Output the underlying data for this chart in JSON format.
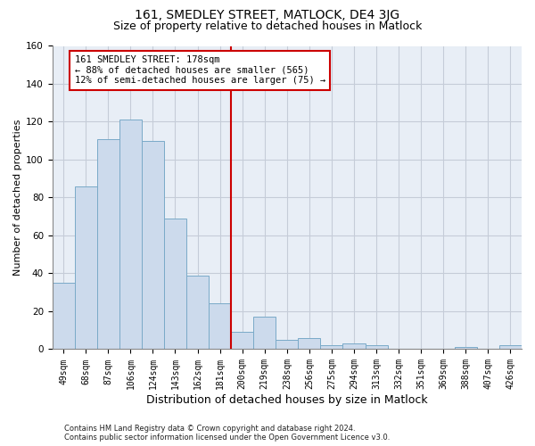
{
  "title": "161, SMEDLEY STREET, MATLOCK, DE4 3JG",
  "subtitle": "Size of property relative to detached houses in Matlock",
  "xlabel": "Distribution of detached houses by size in Matlock",
  "ylabel": "Number of detached properties",
  "bar_color": "#ccdaec",
  "bar_edge_color": "#7aaac8",
  "background_color": "#ffffff",
  "plot_bg_color": "#e8eef6",
  "grid_color": "#c5ccd8",
  "categories": [
    "49sqm",
    "68sqm",
    "87sqm",
    "106sqm",
    "124sqm",
    "143sqm",
    "162sqm",
    "181sqm",
    "200sqm",
    "219sqm",
    "238sqm",
    "256sqm",
    "275sqm",
    "294sqm",
    "313sqm",
    "332sqm",
    "351sqm",
    "369sqm",
    "388sqm",
    "407sqm",
    "426sqm"
  ],
  "values": [
    35,
    86,
    111,
    121,
    110,
    69,
    39,
    24,
    9,
    17,
    5,
    6,
    2,
    3,
    2,
    0,
    0,
    0,
    1,
    0,
    2
  ],
  "vline_x": 7.5,
  "vline_color": "#cc0000",
  "annotation_text": "161 SMEDLEY STREET: 178sqm\n← 88% of detached houses are smaller (565)\n12% of semi-detached houses are larger (75) →",
  "annotation_box_color": "#ffffff",
  "annotation_box_edge": "#cc0000",
  "footer": "Contains HM Land Registry data © Crown copyright and database right 2024.\nContains public sector information licensed under the Open Government Licence v3.0.",
  "ylim": [
    0,
    160
  ],
  "yticks": [
    0,
    20,
    40,
    60,
    80,
    100,
    120,
    140,
    160
  ],
  "title_fontsize": 10,
  "subtitle_fontsize": 9,
  "xlabel_fontsize": 9,
  "ylabel_fontsize": 8,
  "tick_fontsize": 7,
  "annotation_fontsize": 7.5,
  "footer_fontsize": 6
}
